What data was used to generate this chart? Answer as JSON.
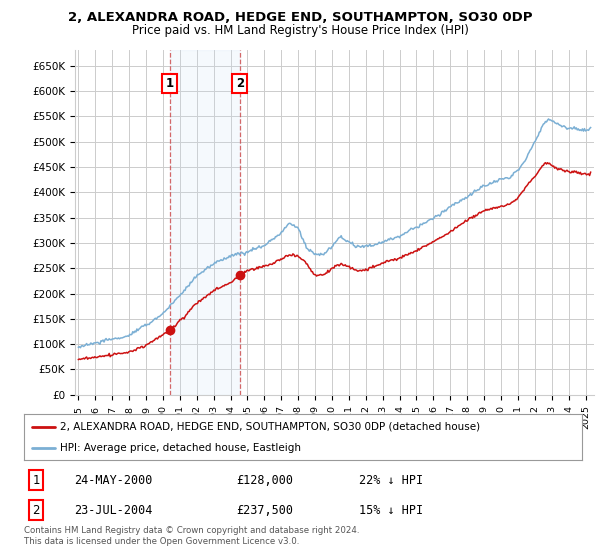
{
  "title": "2, ALEXANDRA ROAD, HEDGE END, SOUTHAMPTON, SO30 0DP",
  "subtitle": "Price paid vs. HM Land Registry's House Price Index (HPI)",
  "ylabel_ticks": [
    "£0",
    "£50K",
    "£100K",
    "£150K",
    "£200K",
    "£250K",
    "£300K",
    "£350K",
    "£400K",
    "£450K",
    "£500K",
    "£550K",
    "£600K",
    "£650K"
  ],
  "ytick_values": [
    0,
    50000,
    100000,
    150000,
    200000,
    250000,
    300000,
    350000,
    400000,
    450000,
    500000,
    550000,
    600000,
    650000
  ],
  "xmin": 1994.8,
  "xmax": 2025.5,
  "ymin": 0,
  "ymax": 680000,
  "hpi_color": "#7bafd4",
  "price_color": "#cc1111",
  "transaction1_date": 2000.39,
  "transaction1_price": 128000,
  "transaction1_label": "1",
  "transaction2_date": 2004.55,
  "transaction2_price": 237500,
  "transaction2_label": "2",
  "legend_line1": "2, ALEXANDRA ROAD, HEDGE END, SOUTHAMPTON, SO30 0DP (detached house)",
  "legend_line2": "HPI: Average price, detached house, Eastleigh",
  "table_row1": [
    "1",
    "24-MAY-2000",
    "£128,000",
    "22% ↓ HPI"
  ],
  "table_row2": [
    "2",
    "23-JUL-2004",
    "£237,500",
    "15% ↓ HPI"
  ],
  "footnote": "Contains HM Land Registry data © Crown copyright and database right 2024.\nThis data is licensed under the Open Government Licence v3.0.",
  "background_color": "#ffffff",
  "grid_color": "#cccccc",
  "highlight_fill": "#ddeeff"
}
